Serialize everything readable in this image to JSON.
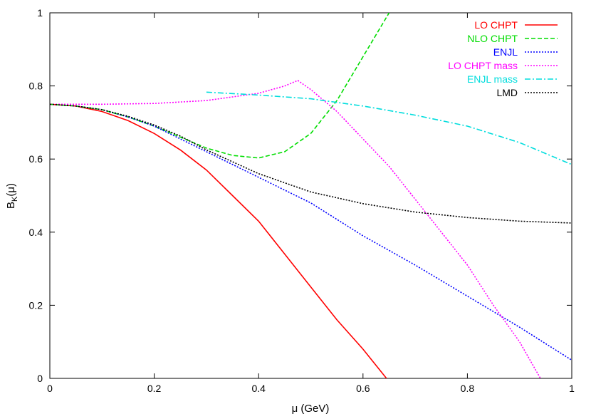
{
  "chart_data": {
    "type": "line",
    "xlabel": "μ (GeV)",
    "ylabel_main": "B",
    "ylabel_sub": "K",
    "ylabel_tail": "(μ)",
    "xlim": [
      0,
      1
    ],
    "ylim": [
      0,
      1
    ],
    "x_ticks": [
      0,
      0.2,
      0.4,
      0.6,
      0.8,
      1
    ],
    "y_ticks": [
      0,
      0.2,
      0.4,
      0.6,
      0.8,
      1
    ],
    "x_tick_labels": [
      "0",
      "0.2",
      "0.4",
      "0.6",
      "0.8",
      "1"
    ],
    "y_tick_labels": [
      "0",
      "0.2",
      "0.4",
      "0.6",
      "0.8",
      "1"
    ],
    "grid": false,
    "legend_position": "top-right",
    "series": [
      {
        "name": "LO CHPT",
        "color": "#ff0000",
        "dash": "solid",
        "points": [
          [
            0,
            0.75
          ],
          [
            0.05,
            0.745
          ],
          [
            0.1,
            0.73
          ],
          [
            0.15,
            0.705
          ],
          [
            0.2,
            0.67
          ],
          [
            0.25,
            0.625
          ],
          [
            0.3,
            0.57
          ],
          [
            0.35,
            0.5
          ],
          [
            0.4,
            0.43
          ],
          [
            0.45,
            0.34
          ],
          [
            0.5,
            0.25
          ],
          [
            0.55,
            0.16
          ],
          [
            0.6,
            0.08
          ],
          [
            0.645,
            0
          ]
        ]
      },
      {
        "name": "NLO CHPT",
        "color": "#00dd00",
        "dash": "dashed",
        "points": [
          [
            0,
            0.75
          ],
          [
            0.05,
            0.745
          ],
          [
            0.1,
            0.735
          ],
          [
            0.15,
            0.715
          ],
          [
            0.2,
            0.69
          ],
          [
            0.25,
            0.66
          ],
          [
            0.3,
            0.63
          ],
          [
            0.35,
            0.61
          ],
          [
            0.4,
            0.603
          ],
          [
            0.45,
            0.62
          ],
          [
            0.5,
            0.67
          ],
          [
            0.55,
            0.76
          ],
          [
            0.6,
            0.88
          ],
          [
            0.65,
            1.0
          ]
        ]
      },
      {
        "name": "ENJL",
        "color": "#0000ff",
        "dash": "dotted",
        "points": [
          [
            0,
            0.75
          ],
          [
            0.05,
            0.745
          ],
          [
            0.1,
            0.735
          ],
          [
            0.15,
            0.715
          ],
          [
            0.2,
            0.69
          ],
          [
            0.25,
            0.655
          ],
          [
            0.3,
            0.62
          ],
          [
            0.4,
            0.55
          ],
          [
            0.5,
            0.48
          ],
          [
            0.6,
            0.39
          ],
          [
            0.7,
            0.31
          ],
          [
            0.8,
            0.225
          ],
          [
            0.9,
            0.14
          ],
          [
            1.0,
            0.05
          ]
        ]
      },
      {
        "name": "LO CHPT mass",
        "color": "#ff00ff",
        "dash": "dotted",
        "points": [
          [
            0,
            0.75
          ],
          [
            0.1,
            0.75
          ],
          [
            0.2,
            0.752
          ],
          [
            0.3,
            0.76
          ],
          [
            0.4,
            0.78
          ],
          [
            0.45,
            0.8
          ],
          [
            0.475,
            0.815
          ],
          [
            0.5,
            0.79
          ],
          [
            0.55,
            0.73
          ],
          [
            0.6,
            0.655
          ],
          [
            0.65,
            0.58
          ],
          [
            0.7,
            0.49
          ],
          [
            0.75,
            0.4
          ],
          [
            0.8,
            0.31
          ],
          [
            0.85,
            0.2
          ],
          [
            0.9,
            0.1
          ],
          [
            0.94,
            0
          ]
        ]
      },
      {
        "name": "ENJL mass",
        "color": "#00dddd",
        "dash": "dashdot",
        "points": [
          [
            0.3,
            0.783
          ],
          [
            0.4,
            0.775
          ],
          [
            0.5,
            0.765
          ],
          [
            0.6,
            0.745
          ],
          [
            0.7,
            0.72
          ],
          [
            0.8,
            0.69
          ],
          [
            0.9,
            0.645
          ],
          [
            1.0,
            0.585
          ]
        ]
      },
      {
        "name": "LMD",
        "color": "#000000",
        "dash": "dotted",
        "points": [
          [
            0,
            0.75
          ],
          [
            0.05,
            0.745
          ],
          [
            0.1,
            0.735
          ],
          [
            0.15,
            0.717
          ],
          [
            0.2,
            0.693
          ],
          [
            0.25,
            0.663
          ],
          [
            0.3,
            0.625
          ],
          [
            0.4,
            0.56
          ],
          [
            0.5,
            0.51
          ],
          [
            0.6,
            0.478
          ],
          [
            0.7,
            0.455
          ],
          [
            0.8,
            0.44
          ],
          [
            0.9,
            0.43
          ],
          [
            1.0,
            0.425
          ]
        ]
      }
    ]
  }
}
